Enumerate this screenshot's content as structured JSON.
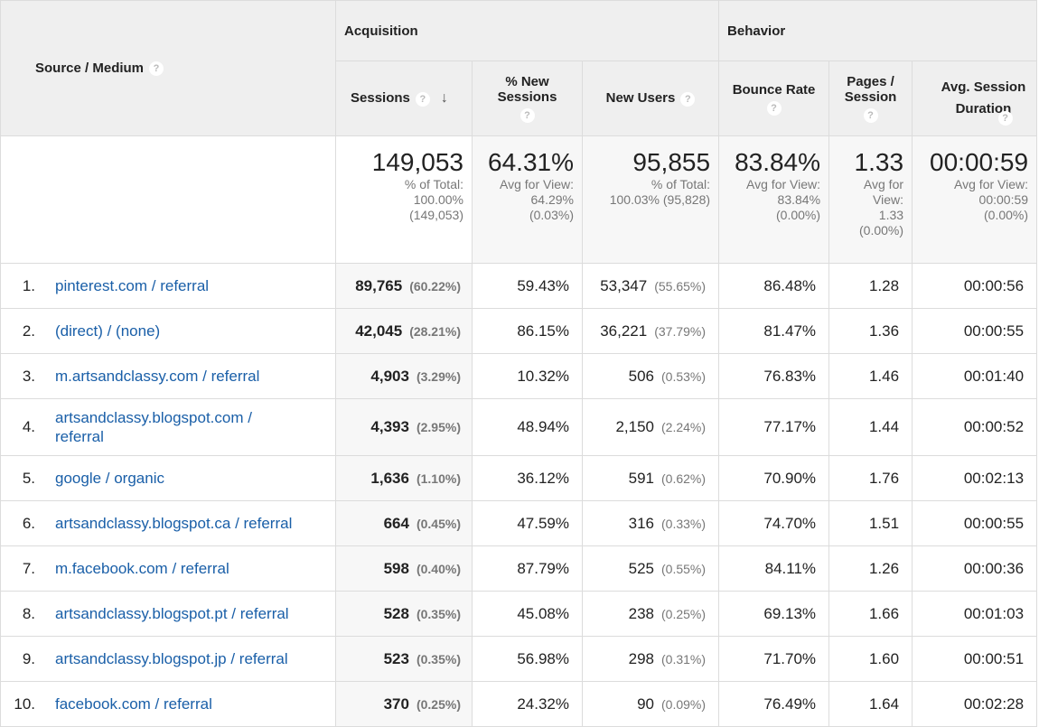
{
  "header": {
    "source_medium": "Source / Medium",
    "group_acquisition": "Acquisition",
    "group_behavior": "Behavior",
    "col_sessions": "Sessions",
    "col_pct_new_sessions": "% New Sessions",
    "col_new_users": "New Users",
    "col_bounce_rate": "Bounce Rate",
    "col_pages_session": "Pages / Session",
    "col_avg_session_duration": "Avg. Session Duration",
    "help_glyph": "?",
    "sort_arrow": "↓"
  },
  "totals": {
    "sessions": {
      "value": "149,053",
      "line1": "% of Total:",
      "line2": "100.00%",
      "line3": "(149,053)"
    },
    "pct_new_sessions": {
      "value": "64.31%",
      "line1": "Avg for View:",
      "line2": "64.29%",
      "line3": "(0.03%)"
    },
    "new_users": {
      "value": "95,855",
      "line1": "% of Total:",
      "line2": "100.03% (95,828)"
    },
    "bounce_rate": {
      "value": "83.84%",
      "line1": "Avg for View:",
      "line2": "83.84%",
      "line3": "(0.00%)"
    },
    "pages_session": {
      "value": "1.33",
      "line1": "Avg for",
      "line2": "View:",
      "line3": "1.33",
      "line4": "(0.00%)"
    },
    "avg_duration": {
      "value": "00:00:59",
      "line1": "Avg for View:",
      "line2": "00:00:59",
      "line3": "(0.00%)"
    }
  },
  "rows": [
    {
      "num": "1.",
      "source_line1": "pinterest.com / referral",
      "source_line2": "",
      "sessions": "89,765",
      "sessions_pct": "(60.22%)",
      "pct_new": "59.43%",
      "new_users": "53,347",
      "new_users_pct": "(55.65%)",
      "bounce": "86.48%",
      "pages": "1.28",
      "duration": "00:00:56"
    },
    {
      "num": "2.",
      "source_line1": "(direct) / (none)",
      "source_line2": "",
      "sessions": "42,045",
      "sessions_pct": "(28.21%)",
      "pct_new": "86.15%",
      "new_users": "36,221",
      "new_users_pct": "(37.79%)",
      "bounce": "81.47%",
      "pages": "1.36",
      "duration": "00:00:55"
    },
    {
      "num": "3.",
      "source_line1": "m.artsandclassy.com / referral",
      "source_line2": "",
      "sessions": "4,903",
      "sessions_pct": "(3.29%)",
      "pct_new": "10.32%",
      "new_users": "506",
      "new_users_pct": "(0.53%)",
      "bounce": "76.83%",
      "pages": "1.46",
      "duration": "00:01:40"
    },
    {
      "num": "4.",
      "source_line1": "artsandclassy.blogspot.com /",
      "source_line2": "referral",
      "sessions": "4,393",
      "sessions_pct": "(2.95%)",
      "pct_new": "48.94%",
      "new_users": "2,150",
      "new_users_pct": "(2.24%)",
      "bounce": "77.17%",
      "pages": "1.44",
      "duration": "00:00:52"
    },
    {
      "num": "5.",
      "source_line1": "google / organic",
      "source_line2": "",
      "sessions": "1,636",
      "sessions_pct": "(1.10%)",
      "pct_new": "36.12%",
      "new_users": "591",
      "new_users_pct": "(0.62%)",
      "bounce": "70.90%",
      "pages": "1.76",
      "duration": "00:02:13"
    },
    {
      "num": "6.",
      "source_line1": "artsandclassy.blogspot.ca / referral",
      "source_line2": "",
      "sessions": "664",
      "sessions_pct": "(0.45%)",
      "pct_new": "47.59%",
      "new_users": "316",
      "new_users_pct": "(0.33%)",
      "bounce": "74.70%",
      "pages": "1.51",
      "duration": "00:00:55"
    },
    {
      "num": "7.",
      "source_line1": "m.facebook.com / referral",
      "source_line2": "",
      "sessions": "598",
      "sessions_pct": "(0.40%)",
      "pct_new": "87.79%",
      "new_users": "525",
      "new_users_pct": "(0.55%)",
      "bounce": "84.11%",
      "pages": "1.26",
      "duration": "00:00:36"
    },
    {
      "num": "8.",
      "source_line1": "artsandclassy.blogspot.pt / referral",
      "source_line2": "",
      "sessions": "528",
      "sessions_pct": "(0.35%)",
      "pct_new": "45.08%",
      "new_users": "238",
      "new_users_pct": "(0.25%)",
      "bounce": "69.13%",
      "pages": "1.66",
      "duration": "00:01:03"
    },
    {
      "num": "9.",
      "source_line1": "artsandclassy.blogspot.jp / referral",
      "source_line2": "",
      "sessions": "523",
      "sessions_pct": "(0.35%)",
      "pct_new": "56.98%",
      "new_users": "298",
      "new_users_pct": "(0.31%)",
      "bounce": "71.70%",
      "pages": "1.60",
      "duration": "00:00:51"
    },
    {
      "num": "10.",
      "source_line1": "facebook.com / referral",
      "source_line2": "",
      "sessions": "370",
      "sessions_pct": "(0.25%)",
      "pct_new": "24.32%",
      "new_users": "90",
      "new_users_pct": "(0.09%)",
      "bounce": "76.49%",
      "pages": "1.64",
      "duration": "00:02:28"
    }
  ]
}
